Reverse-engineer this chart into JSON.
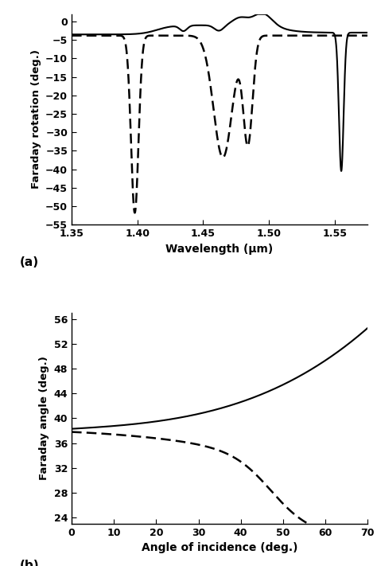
{
  "panel_a": {
    "xlim": [
      1.35,
      1.575
    ],
    "ylim": [
      -55,
      2
    ],
    "yticks": [
      0,
      -5,
      -10,
      -15,
      -20,
      -25,
      -30,
      -35,
      -40,
      -45,
      -50,
      -55
    ],
    "xticks": [
      1.35,
      1.4,
      1.45,
      1.5,
      1.55
    ],
    "xlabel": "Wavelength (μm)",
    "ylabel": "Faraday rotation (deg.)",
    "label": "(a)"
  },
  "panel_b": {
    "xlim": [
      0,
      70
    ],
    "ylim": [
      23,
      57
    ],
    "yticks": [
      24,
      28,
      32,
      36,
      40,
      44,
      48,
      52,
      56
    ],
    "xticks": [
      0,
      10,
      20,
      30,
      40,
      50,
      60,
      70
    ],
    "xlabel": "Angle of incidence (deg.)",
    "ylabel": "Faraday angle (deg.)",
    "label": "(b)"
  },
  "line_color": "#000000",
  "bg_color": "#ffffff",
  "linewidth": 1.5,
  "dash_linewidth": 1.8
}
